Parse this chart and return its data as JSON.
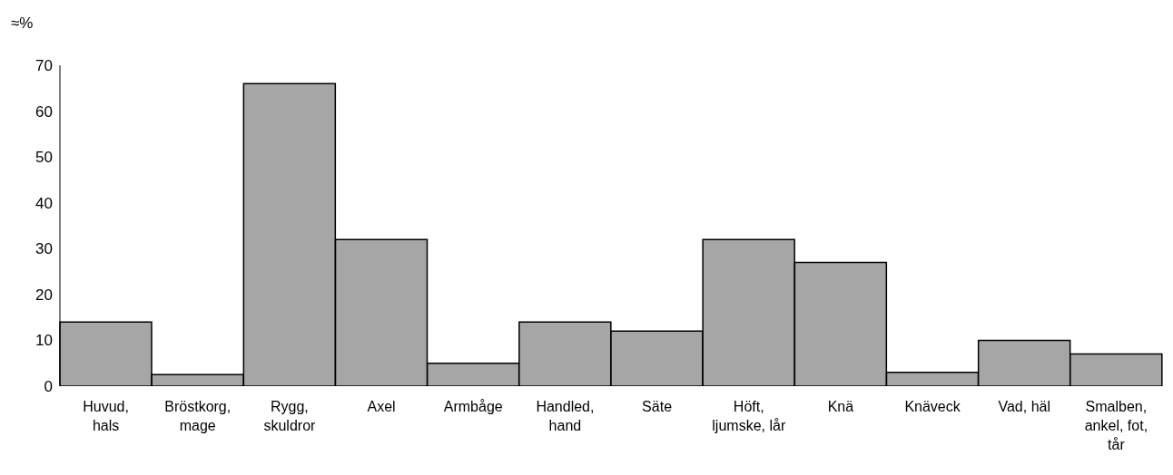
{
  "chart_data": {
    "type": "bar",
    "ylabel": "≈%",
    "categories": [
      "Huvud, hals",
      "Bröstkorg, mage",
      "Rygg, skuldror",
      "Axel",
      "Armbåge",
      "Handled, hand",
      "Säte",
      "Höft, ljumske, lår",
      "Knä",
      "Knäveck",
      "Vad, häl",
      "Smalben, ankel, fot, tår"
    ],
    "values": [
      14,
      2.5,
      66,
      32,
      5,
      14,
      12,
      32,
      27,
      3,
      10,
      7
    ],
    "color": "#a6a6a6",
    "ylim": [
      0,
      70
    ],
    "yticks": [
      0,
      10,
      20,
      30,
      40,
      50,
      60,
      70
    ],
    "grid": false,
    "legend": false
  }
}
